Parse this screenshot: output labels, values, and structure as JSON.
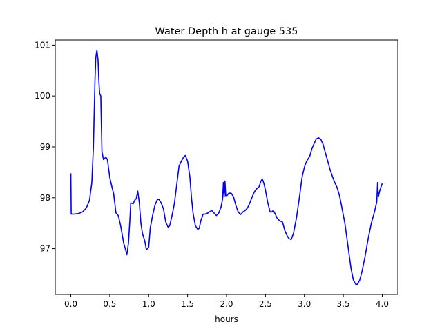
{
  "chart_data": {
    "type": "line",
    "title": "Water Depth h at gauge 535",
    "xlabel": "hours",
    "ylabel": "",
    "xlim": [
      -0.2,
      4.2
    ],
    "ylim": [
      96.1,
      101.1
    ],
    "xticks": [
      0.0,
      0.5,
      1.0,
      1.5,
      2.0,
      2.5,
      3.0,
      3.5,
      4.0
    ],
    "xtick_labels": [
      "0.0",
      "0.5",
      "1.0",
      "1.5",
      "2.0",
      "2.5",
      "3.0",
      "3.5",
      "4.0"
    ],
    "yticks": [
      97,
      98,
      99,
      100,
      101
    ],
    "ytick_labels": [
      "97",
      "98",
      "99",
      "100",
      "101"
    ],
    "grid": false,
    "series": [
      {
        "color": "#0000ff",
        "points": [
          [
            0.0,
            98.48
          ],
          [
            0.005,
            97.68
          ],
          [
            0.05,
            97.68
          ],
          [
            0.1,
            97.69
          ],
          [
            0.15,
            97.72
          ],
          [
            0.2,
            97.8
          ],
          [
            0.24,
            97.95
          ],
          [
            0.27,
            98.3
          ],
          [
            0.29,
            99.0
          ],
          [
            0.31,
            100.3
          ],
          [
            0.32,
            100.75
          ],
          [
            0.335,
            100.9
          ],
          [
            0.35,
            100.7
          ],
          [
            0.36,
            100.3
          ],
          [
            0.37,
            100.05
          ],
          [
            0.385,
            100.0
          ],
          [
            0.39,
            99.6
          ],
          [
            0.4,
            98.9
          ],
          [
            0.42,
            98.75
          ],
          [
            0.45,
            98.8
          ],
          [
            0.47,
            98.75
          ],
          [
            0.5,
            98.4
          ],
          [
            0.53,
            98.2
          ],
          [
            0.55,
            98.08
          ],
          [
            0.58,
            97.7
          ],
          [
            0.61,
            97.65
          ],
          [
            0.64,
            97.45
          ],
          [
            0.68,
            97.1
          ],
          [
            0.7,
            97.0
          ],
          [
            0.72,
            96.88
          ],
          [
            0.74,
            97.1
          ],
          [
            0.76,
            97.6
          ],
          [
            0.77,
            97.9
          ],
          [
            0.8,
            97.88
          ],
          [
            0.82,
            97.95
          ],
          [
            0.84,
            97.98
          ],
          [
            0.86,
            98.13
          ],
          [
            0.88,
            97.9
          ],
          [
            0.9,
            97.5
          ],
          [
            0.92,
            97.3
          ],
          [
            0.95,
            97.15
          ],
          [
            0.97,
            96.98
          ],
          [
            1.0,
            97.02
          ],
          [
            1.02,
            97.4
          ],
          [
            1.05,
            97.65
          ],
          [
            1.08,
            97.85
          ],
          [
            1.11,
            97.96
          ],
          [
            1.13,
            97.97
          ],
          [
            1.16,
            97.9
          ],
          [
            1.19,
            97.78
          ],
          [
            1.22,
            97.52
          ],
          [
            1.25,
            97.42
          ],
          [
            1.27,
            97.45
          ],
          [
            1.3,
            97.65
          ],
          [
            1.33,
            97.88
          ],
          [
            1.36,
            98.25
          ],
          [
            1.39,
            98.62
          ],
          [
            1.42,
            98.72
          ],
          [
            1.45,
            98.8
          ],
          [
            1.47,
            98.83
          ],
          [
            1.5,
            98.72
          ],
          [
            1.53,
            98.4
          ],
          [
            1.55,
            98.0
          ],
          [
            1.57,
            97.7
          ],
          [
            1.6,
            97.45
          ],
          [
            1.63,
            97.38
          ],
          [
            1.65,
            97.4
          ],
          [
            1.67,
            97.55
          ],
          [
            1.7,
            97.68
          ],
          [
            1.73,
            97.68
          ],
          [
            1.76,
            97.7
          ],
          [
            1.79,
            97.73
          ],
          [
            1.81,
            97.75
          ],
          [
            1.84,
            97.7
          ],
          [
            1.87,
            97.65
          ],
          [
            1.9,
            97.7
          ],
          [
            1.93,
            97.82
          ],
          [
            1.95,
            97.98
          ],
          [
            1.96,
            98.3
          ],
          [
            1.97,
            98.02
          ],
          [
            1.98,
            98.33
          ],
          [
            1.99,
            98.04
          ],
          [
            2.01,
            98.05
          ],
          [
            2.03,
            98.09
          ],
          [
            2.06,
            98.09
          ],
          [
            2.09,
            98.02
          ],
          [
            2.12,
            97.85
          ],
          [
            2.15,
            97.72
          ],
          [
            2.18,
            97.67
          ],
          [
            2.21,
            97.72
          ],
          [
            2.24,
            97.75
          ],
          [
            2.27,
            97.8
          ],
          [
            2.3,
            97.9
          ],
          [
            2.33,
            98.02
          ],
          [
            2.36,
            98.12
          ],
          [
            2.39,
            98.18
          ],
          [
            2.42,
            98.22
          ],
          [
            2.44,
            98.32
          ],
          [
            2.46,
            98.37
          ],
          [
            2.48,
            98.28
          ],
          [
            2.5,
            98.15
          ],
          [
            2.53,
            97.9
          ],
          [
            2.56,
            97.72
          ],
          [
            2.58,
            97.72
          ],
          [
            2.6,
            97.75
          ],
          [
            2.62,
            97.7
          ],
          [
            2.65,
            97.6
          ],
          [
            2.68,
            97.55
          ],
          [
            2.72,
            97.52
          ],
          [
            2.75,
            97.35
          ],
          [
            2.78,
            97.25
          ],
          [
            2.8,
            97.2
          ],
          [
            2.83,
            97.18
          ],
          [
            2.86,
            97.3
          ],
          [
            2.9,
            97.62
          ],
          [
            2.94,
            98.05
          ],
          [
            2.97,
            98.4
          ],
          [
            3.0,
            98.6
          ],
          [
            3.03,
            98.72
          ],
          [
            3.07,
            98.82
          ],
          [
            3.1,
            98.98
          ],
          [
            3.13,
            99.08
          ],
          [
            3.15,
            99.15
          ],
          [
            3.18,
            99.18
          ],
          [
            3.21,
            99.15
          ],
          [
            3.24,
            99.05
          ],
          [
            3.27,
            98.88
          ],
          [
            3.3,
            98.72
          ],
          [
            3.33,
            98.55
          ],
          [
            3.36,
            98.42
          ],
          [
            3.39,
            98.3
          ],
          [
            3.42,
            98.2
          ],
          [
            3.45,
            98.05
          ],
          [
            3.48,
            97.82
          ],
          [
            3.52,
            97.5
          ],
          [
            3.56,
            97.05
          ],
          [
            3.6,
            96.6
          ],
          [
            3.63,
            96.38
          ],
          [
            3.66,
            96.3
          ],
          [
            3.68,
            96.3
          ],
          [
            3.71,
            96.38
          ],
          [
            3.74,
            96.55
          ],
          [
            3.78,
            96.85
          ],
          [
            3.82,
            97.2
          ],
          [
            3.86,
            97.5
          ],
          [
            3.9,
            97.72
          ],
          [
            3.93,
            97.92
          ],
          [
            3.94,
            98.3
          ],
          [
            3.95,
            98.02
          ],
          [
            3.97,
            98.15
          ],
          [
            4.0,
            98.28
          ]
        ]
      }
    ]
  }
}
